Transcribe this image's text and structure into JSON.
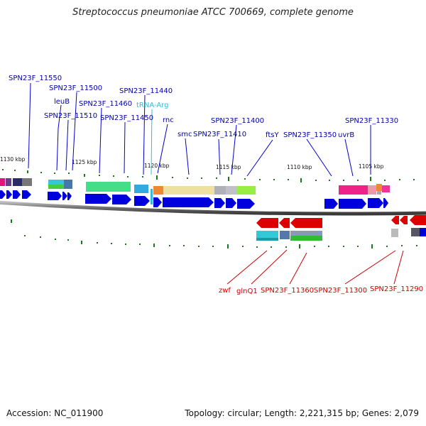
{
  "title": "Streptococcus pneumoniae ATCC 700669, complete genome",
  "footer": {
    "accession": "Accession: NC_011900",
    "stats": "Topology: circular; Length: 2,221,315 bp; Genes: 2,079"
  },
  "colors": {
    "upper_gene": "#0000dd",
    "lower_gene": "#dd0000",
    "trna": "#33bbdd",
    "tick": "#1a7a1a",
    "backbone": "#555555"
  },
  "scale_labels": [
    "1130 kbp",
    "1125 kbp",
    "1120 kbp",
    "1115 kbp",
    "1110 kbp",
    "1105 kbp"
  ],
  "upper_labels": [
    "SPN23F_11550",
    "SPN23F_11500",
    "leuB",
    "SPN23F_11510",
    "SPN23F_11460",
    "SPN23F_11450",
    "SPN23F_11440",
    "tRNA-Arg",
    "rnc",
    "smc",
    "SPN23F_11410",
    "SPN23F_11400",
    "ftsY",
    "SPN23F_11350",
    "uvrB",
    "SPN23F_11330"
  ],
  "lower_labels": [
    "zwf",
    "glnQ1",
    "SPN23F_11360",
    "SPN23F_11300",
    "SPN23F_11290"
  ]
}
